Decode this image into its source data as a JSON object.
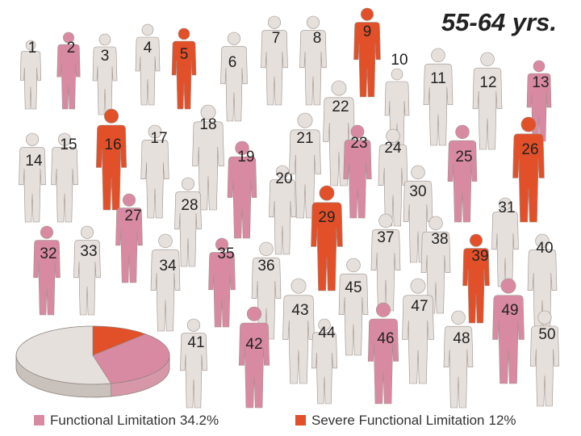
{
  "chart_data": {
    "type": "pie",
    "title": "55-64 yrs.",
    "categories": [
      "Functional Limitation",
      "Severe Functional Limitation"
    ],
    "values": [
      34.2,
      12
    ],
    "value_labels": [
      "34.2%",
      "12%"
    ],
    "colors": [
      "#d98aa3",
      "#e2502a"
    ],
    "rest_color": "#e6e0dc"
  },
  "people": [
    {
      "label": "1",
      "color": "#e6e0dc"
    },
    {
      "label": "2",
      "color": "#d98aa3"
    },
    {
      "label": "3",
      "color": "#e6e0dc"
    },
    {
      "label": "4",
      "color": "#e6e0dc"
    },
    {
      "label": "5",
      "color": "#e2502a"
    },
    {
      "label": "6",
      "color": "#e6e0dc"
    },
    {
      "label": "7",
      "color": "#e6e0dc"
    },
    {
      "label": "8",
      "color": "#e6e0dc"
    },
    {
      "label": "9",
      "color": "#e2502a"
    },
    {
      "label": "10",
      "color": "#e6e0dc"
    },
    {
      "label": "11",
      "color": "#e6e0dc"
    },
    {
      "label": "12",
      "color": "#e6e0dc"
    },
    {
      "label": "13",
      "color": "#d98aa3"
    },
    {
      "label": "14",
      "color": "#e6e0dc"
    },
    {
      "label": "15",
      "color": "#e6e0dc"
    },
    {
      "label": "16",
      "color": "#e2502a"
    },
    {
      "label": "17",
      "color": "#e6e0dc"
    },
    {
      "label": "18",
      "color": "#e6e0dc"
    },
    {
      "label": "19",
      "color": "#d98aa3"
    },
    {
      "label": "20",
      "color": "#e6e0dc"
    },
    {
      "label": "21",
      "color": "#e6e0dc"
    },
    {
      "label": "22",
      "color": "#e6e0dc"
    },
    {
      "label": "23",
      "color": "#d98aa3"
    },
    {
      "label": "24",
      "color": "#e6e0dc"
    },
    {
      "label": "25",
      "color": "#d98aa3"
    },
    {
      "label": "26",
      "color": "#e2502a"
    },
    {
      "label": "27",
      "color": "#d98aa3"
    },
    {
      "label": "28",
      "color": "#e6e0dc"
    },
    {
      "label": "29",
      "color": "#e2502a"
    },
    {
      "label": "30",
      "color": "#e6e0dc"
    },
    {
      "label": "31",
      "color": "#e6e0dc"
    },
    {
      "label": "32",
      "color": "#d98aa3"
    },
    {
      "label": "33",
      "color": "#e6e0dc"
    },
    {
      "label": "34",
      "color": "#e6e0dc"
    },
    {
      "label": "35",
      "color": "#d98aa3"
    },
    {
      "label": "36",
      "color": "#e6e0dc"
    },
    {
      "label": "37",
      "color": "#e6e0dc"
    },
    {
      "label": "38",
      "color": "#e6e0dc"
    },
    {
      "label": "39",
      "color": "#e2502a"
    },
    {
      "label": "40",
      "color": "#e6e0dc"
    },
    {
      "label": "41",
      "color": "#e6e0dc"
    },
    {
      "label": "42",
      "color": "#d98aa3"
    },
    {
      "label": "43",
      "color": "#e6e0dc"
    },
    {
      "label": "44",
      "color": "#e6e0dc"
    },
    {
      "label": "45",
      "color": "#e6e0dc"
    },
    {
      "label": "46",
      "color": "#d98aa3"
    },
    {
      "label": "47",
      "color": "#e6e0dc"
    },
    {
      "label": "48",
      "color": "#e6e0dc"
    },
    {
      "label": "49",
      "color": "#d98aa3"
    },
    {
      "label": "50",
      "color": "#e6e0dc"
    }
  ]
}
